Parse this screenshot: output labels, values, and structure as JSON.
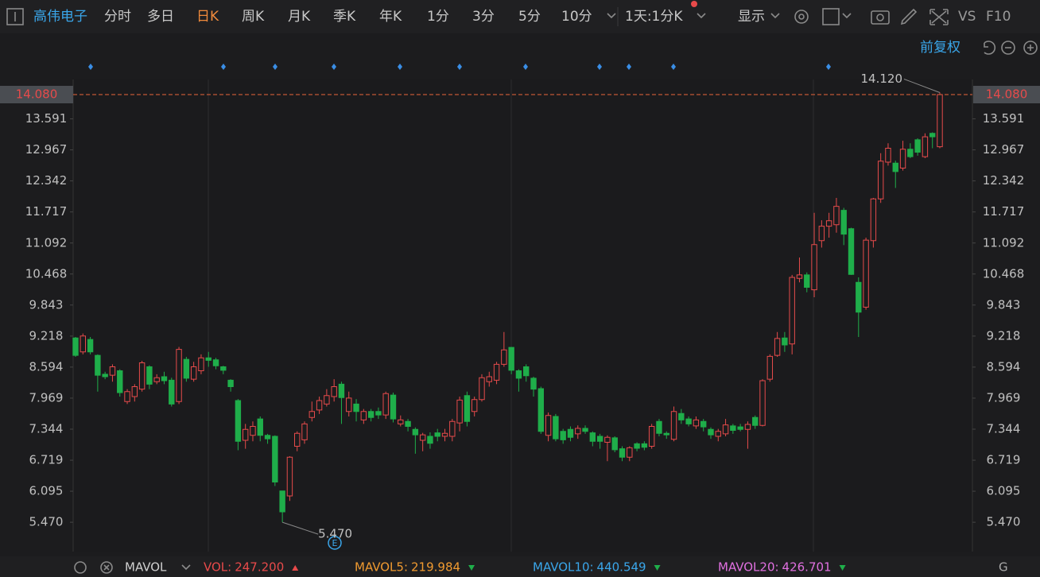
{
  "toolbar": {
    "stock": "高伟电子",
    "periods": [
      "分时",
      "多日",
      "日K",
      "周K",
      "月K",
      "季K",
      "年K",
      "1分",
      "3分",
      "5分",
      "10分"
    ],
    "active": "日K",
    "interval": "1天:1分K",
    "display": "显示",
    "vs": "VS",
    "f10": "F10",
    "adjust": "前复权"
  },
  "indicator_bar": {
    "name": "MAVOL",
    "items": [
      {
        "label": "VOL:",
        "value": "247.200",
        "color": "#e84a4a",
        "trend": "up"
      },
      {
        "label": "MAVOL5:",
        "value": "219.984",
        "color": "#f09a30",
        "trend": "down"
      },
      {
        "label": "MAVOL10:",
        "value": "440.549",
        "color": "#3aa6ea",
        "trend": "down"
      },
      {
        "label": "MAVOL20:",
        "value": "426.701",
        "color": "#e070e0",
        "trend": "down"
      }
    ]
  },
  "chart_data": {
    "type": "candlestick",
    "up_color": "#e64b4b",
    "down_color": "#1fae4a",
    "ylim": [
      4.912,
      14.384
    ],
    "yticks": [
      {
        "value": 5.47,
        "label": "5.470"
      },
      6.095,
      6.719,
      7.344,
      7.969,
      8.594,
      9.218,
      9.843,
      10.468,
      11.092,
      11.717,
      12.342,
      12.967,
      13.591
    ],
    "current_price": {
      "value": 14.08,
      "label": "14.080",
      "color": "#e8643c"
    },
    "annotations": [
      {
        "value": 14.12,
        "label": "14.120",
        "at": "high"
      },
      {
        "value": 5.47,
        "label": "5.470",
        "at": "low"
      }
    ],
    "open": [
      9.18,
      8.9,
      9.15,
      8.83,
      8.45,
      8.43,
      8.52,
      7.9,
      8.0,
      8.15,
      8.6,
      8.3,
      8.4,
      8.33,
      7.9,
      8.75,
      8.35,
      8.52,
      8.78,
      8.74,
      8.6,
      8.33,
      7.92,
      7.12,
      7.22,
      7.55,
      7.22,
      7.2,
      6.1,
      6.0,
      7.0,
      7.13,
      7.58,
      7.73,
      7.85,
      8.0,
      8.25,
      7.7,
      7.85,
      7.53,
      7.7,
      7.7,
      7.63,
      8.03,
      7.45,
      7.5,
      7.34,
      7.12,
      7.2,
      7.27,
      7.2,
      7.2,
      7.47,
      8.02,
      7.7,
      7.94,
      8.3,
      8.33,
      8.65,
      8.99,
      8.52,
      8.6,
      8.37,
      8.16,
      7.22,
      7.6,
      7.3,
      7.34,
      7.25,
      7.36,
      7.27,
      7.2,
      7.08,
      7.17,
      6.95,
      6.78,
      7.05,
      7.05,
      7.0,
      7.5,
      7.26,
      7.14,
      7.66,
      7.55,
      7.41,
      7.5,
      7.34,
      7.2,
      7.25,
      7.41,
      7.39,
      7.34,
      7.58,
      7.42,
      8.35,
      8.83,
      9.18,
      9.06,
      10.38,
      10.45,
      10.15,
      11.14,
      11.43,
      11.46,
      11.75,
      11.38,
      10.3,
      9.8,
      11.14,
      11.98,
      12.72,
      12.7,
      12.6,
      12.98,
      13.17,
      12.83,
      13.3,
      13.03
    ],
    "high": [
      9.2,
      9.27,
      9.2,
      8.85,
      8.5,
      8.65,
      8.55,
      8.15,
      8.25,
      8.72,
      8.63,
      8.45,
      8.5,
      8.38,
      9.0,
      8.8,
      8.7,
      8.85,
      8.9,
      8.78,
      8.62,
      8.35,
      7.95,
      7.45,
      7.5,
      7.6,
      7.25,
      7.22,
      6.1,
      6.8,
      7.3,
      7.5,
      7.9,
      8.0,
      8.15,
      8.35,
      8.3,
      8.1,
      7.95,
      7.75,
      7.75,
      7.78,
      8.1,
      8.08,
      7.62,
      7.55,
      7.38,
      7.27,
      7.28,
      7.35,
      7.35,
      7.55,
      8.0,
      8.1,
      8.0,
      8.45,
      8.5,
      8.7,
      9.3,
      9.0,
      8.55,
      8.65,
      8.4,
      8.2,
      7.68,
      7.65,
      7.35,
      7.4,
      7.42,
      7.42,
      7.3,
      7.25,
      7.22,
      7.2,
      7.0,
      7.0,
      7.08,
      7.1,
      7.45,
      7.55,
      7.3,
      7.8,
      7.75,
      7.6,
      7.6,
      7.55,
      7.38,
      7.35,
      7.55,
      7.45,
      7.45,
      7.5,
      7.62,
      8.35,
      8.85,
      9.3,
      9.3,
      10.45,
      10.8,
      10.5,
      11.7,
      11.55,
      11.7,
      12.0,
      11.8,
      11.4,
      10.4,
      11.2,
      12.0,
      12.9,
      13.1,
      12.75,
      13.15,
      13.1,
      13.2,
      13.3,
      13.32,
      14.12
    ],
    "low": [
      8.8,
      8.85,
      8.85,
      8.1,
      8.35,
      8.3,
      8.0,
      7.85,
      7.9,
      8.1,
      8.15,
      8.25,
      8.25,
      7.8,
      7.85,
      8.3,
      8.3,
      8.45,
      8.6,
      8.55,
      8.45,
      8.1,
      6.92,
      6.95,
      7.1,
      7.1,
      7.05,
      6.2,
      5.47,
      5.9,
      6.9,
      7.05,
      7.5,
      7.65,
      7.8,
      7.9,
      7.45,
      7.6,
      7.5,
      7.45,
      7.5,
      7.55,
      7.55,
      7.48,
      7.4,
      7.3,
      6.85,
      6.9,
      6.95,
      7.1,
      7.1,
      7.1,
      7.3,
      7.4,
      7.6,
      7.9,
      8.2,
      8.25,
      8.6,
      8.45,
      8.1,
      8.3,
      8.0,
      7.25,
      7.1,
      7.1,
      7.05,
      7.1,
      7.15,
      7.25,
      7.0,
      6.95,
      6.7,
      6.88,
      6.7,
      6.7,
      6.9,
      6.92,
      6.95,
      7.2,
      7.15,
      7.1,
      7.45,
      7.4,
      7.35,
      7.3,
      7.15,
      7.1,
      7.2,
      7.25,
      7.3,
      6.95,
      7.35,
      7.4,
      8.3,
      8.8,
      8.9,
      8.85,
      10.3,
      10.1,
      10.0,
      11.0,
      11.2,
      11.3,
      11.05,
      10.45,
      9.2,
      9.75,
      11.0,
      11.9,
      12.65,
      12.2,
      12.55,
      12.8,
      12.85,
      12.8,
      13.0,
      13.0
    ],
    "close": [
      8.83,
      9.22,
      8.9,
      8.43,
      8.4,
      8.6,
      8.08,
      8.1,
      8.2,
      8.68,
      8.25,
      8.38,
      8.32,
      7.85,
      8.95,
      8.37,
      8.6,
      8.78,
      8.73,
      8.62,
      8.53,
      8.2,
      7.1,
      7.34,
      7.4,
      7.22,
      7.15,
      6.28,
      5.68,
      6.78,
      7.26,
      7.45,
      7.7,
      7.92,
      8.02,
      8.2,
      7.98,
      7.97,
      7.7,
      7.7,
      7.58,
      7.63,
      8.06,
      7.55,
      7.53,
      7.4,
      7.23,
      7.23,
      7.06,
      7.2,
      7.26,
      7.5,
      7.93,
      7.5,
      7.94,
      8.38,
      8.4,
      8.65,
      8.94,
      8.53,
      8.37,
      8.42,
      8.15,
      7.3,
      7.62,
      7.15,
      7.13,
      7.18,
      7.36,
      7.3,
      7.1,
      7.1,
      7.18,
      6.93,
      6.78,
      6.97,
      6.96,
      6.98,
      7.4,
      7.26,
      7.23,
      7.7,
      7.53,
      7.45,
      7.53,
      7.39,
      7.23,
      7.3,
      7.43,
      7.32,
      7.34,
      7.44,
      7.42,
      8.32,
      8.81,
      9.17,
      9.04,
      10.4,
      10.45,
      10.2,
      11.06,
      11.43,
      11.54,
      11.83,
      11.27,
      10.46,
      9.7,
      11.15,
      11.98,
      12.74,
      13.0,
      12.53,
      12.98,
      12.83,
      12.92,
      13.23,
      13.23,
      14.08
    ]
  }
}
